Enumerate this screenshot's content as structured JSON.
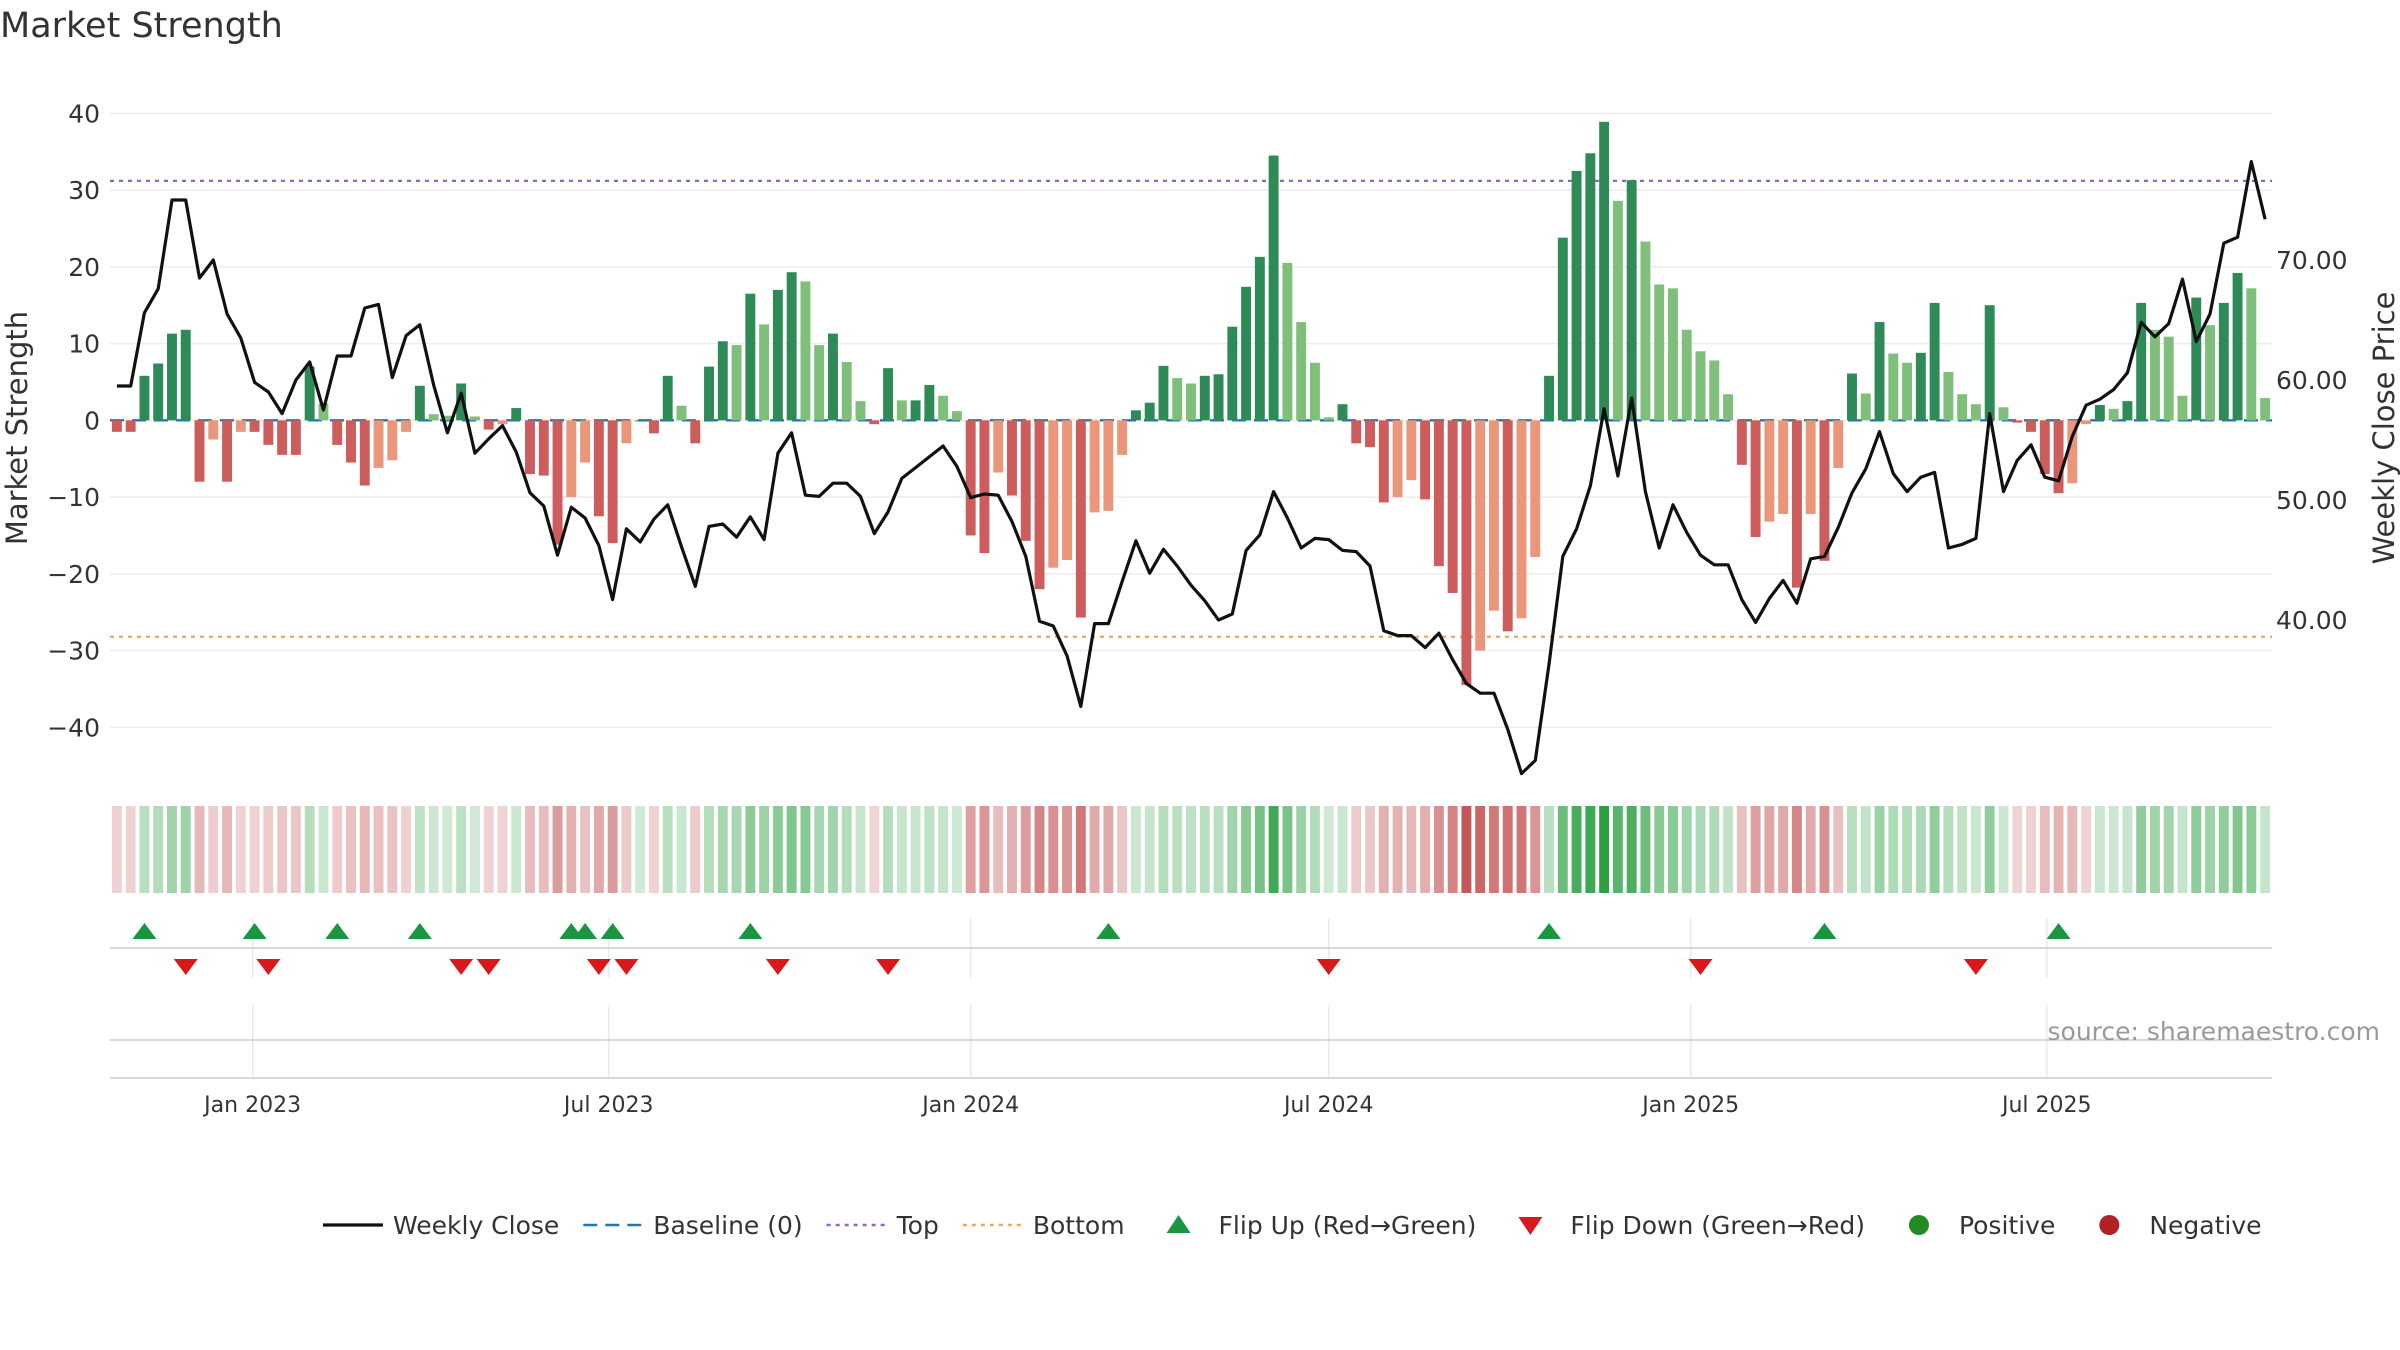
{
  "chart_data": {
    "type": "bar",
    "title": "Market Strength",
    "ylabel_left": "Market Strength",
    "ylabel_right": "Weekly Close Price",
    "source": "source: sharemaestro.com",
    "y_left_range": [
      -44,
      42
    ],
    "y_left_ticks": [
      "40",
      "30",
      "20",
      "10",
      "0",
      "−10",
      "−20",
      "−30",
      "−40"
    ],
    "y_right_range": [
      28.5,
      83.5
    ],
    "y_right_ticks": [
      "70.00",
      "60.00",
      "50.00",
      "40.00"
    ],
    "top_level": 31.2,
    "bottom_level": -28.2,
    "x_ticks": [
      "Jan 2023",
      "Jul 2023",
      "Jan 2024",
      "Jul 2024",
      "Jan 2025",
      "Jul 2025"
    ],
    "start_date": "2022-10-24",
    "week_days": 7,
    "strength": [
      -1.5,
      -1.5,
      5.8,
      7.4,
      11.3,
      11.8,
      -8,
      -2.5,
      -8,
      -1.5,
      -1.5,
      -3.2,
      -4.5,
      -4.5,
      7,
      2.2,
      -3.2,
      -5.5,
      -8.5,
      -6.2,
      -5.2,
      -1.5,
      4.5,
      0.8,
      0.6,
      4.8,
      0.5,
      -1.2,
      -0.5,
      1.6,
      -7,
      -7.2,
      -16.2,
      -10,
      -5.5,
      -12.5,
      -16,
      -3,
      0,
      -1.7,
      5.8,
      1.9,
      -3,
      7,
      10.3,
      9.8,
      16.5,
      12.5,
      17,
      19.3,
      18.1,
      9.8,
      11.3,
      7.6,
      2.5,
      -0.5,
      6.8,
      2.6,
      2.6,
      4.6,
      3.2,
      1.2,
      -15,
      -17.3,
      -6.8,
      -9.8,
      -15.7,
      -22,
      -19.2,
      -18.2,
      -25.7,
      -12,
      -11.8,
      -4.5,
      1.3,
      2.3,
      7.1,
      5.5,
      4.8,
      5.8,
      6,
      12.2,
      17.4,
      21.3,
      34.5,
      20.5,
      12.8,
      7.5,
      0.4,
      2.1,
      -3,
      -3.5,
      -10.7,
      -10,
      -7.8,
      -10.3,
      -19,
      -22.5,
      -34.5,
      -30,
      -24.8,
      -27.5,
      -25.8,
      -17.8,
      5.8,
      23.8,
      32.5,
      34.8,
      38.9,
      28.6,
      31.3,
      23.3,
      17.7,
      17.2,
      11.8,
      9,
      7.8,
      3.4,
      -5.8,
      -15.2,
      -13.2,
      -12.2,
      -21.8,
      -12.2,
      -18.3,
      -6.2,
      6.1,
      3.5,
      12.8,
      8.7,
      7.5,
      8.8,
      15.3,
      6.3,
      3.4,
      2.1,
      15,
      1.7,
      -0.3,
      -1.5,
      -7,
      -9.5,
      -8.2,
      -0.5,
      2,
      1.5,
      2.5,
      15.3,
      11.8,
      10.9,
      3.2,
      16,
      12.4,
      15.3,
      19.2,
      17.2,
      2.9
    ],
    "weekly_close": [
      59.5,
      59.5,
      65.6,
      67.6,
      75,
      75,
      68.5,
      70,
      65.5,
      63.5,
      59.8,
      59,
      57.2,
      60,
      61.5,
      57.5,
      62,
      62,
      66,
      66.3,
      60.2,
      63.7,
      64.6,
      59.6,
      55.6,
      58.9,
      53.9,
      55.1,
      56.2,
      54,
      50.6,
      49.5,
      45.4,
      49.4,
      48.5,
      46.2,
      41.7,
      47.6,
      46.5,
      48.4,
      49.6,
      46.1,
      42.8,
      47.8,
      48,
      46.9,
      48.6,
      46.7,
      53.9,
      55.6,
      50.4,
      50.3,
      51.4,
      51.4,
      50.3,
      47.2,
      49,
      51.8,
      52.7,
      53.6,
      54.5,
      52.8,
      50.2,
      50.5,
      50.4,
      48.2,
      45.3,
      39.9,
      39.5,
      37,
      32.8,
      39.7,
      39.7,
      43.2,
      46.6,
      43.9,
      45.9,
      44.5,
      42.9,
      41.6,
      40,
      40.5,
      45.8,
      47.1,
      50.7,
      48.5,
      46,
      46.8,
      46.7,
      45.8,
      45.7,
      44.5,
      39.1,
      38.7,
      38.7,
      37.7,
      38.9,
      36.7,
      34.7,
      33.9,
      33.9,
      30.9,
      27.2,
      28.3,
      36.3,
      45.3,
      47.6,
      51.2,
      57.6,
      52,
      58.5,
      50.7,
      46,
      49.6,
      47.3,
      45.4,
      44.6,
      44.6,
      41.7,
      39.8,
      41.8,
      43.3,
      41.4,
      45.1,
      45.3,
      47.7,
      50.6,
      52.6,
      55.7,
      52.2,
      50.7,
      51.9,
      52.3,
      46,
      46.3,
      46.8,
      57.2,
      50.7,
      53.3,
      54.6,
      51.9,
      51.6,
      55.3,
      57.9,
      58.4,
      59.2,
      60.6,
      64.8,
      63.6,
      64.7,
      68.4,
      63.2,
      65.5,
      71.4,
      71.9,
      78.2,
      73.4
    ],
    "flip_up_dates": [
      "2022-11-07",
      "2023-01-02",
      "2023-02-13",
      "2023-03-27",
      "2023-06-12",
      "2023-06-19",
      "2023-07-03",
      "2023-09-11",
      "2024-03-11",
      "2024-10-21",
      "2025-03-10",
      "2025-07-07"
    ],
    "flip_down_dates": [
      "2022-11-28",
      "2023-01-09",
      "2023-04-17",
      "2023-05-01",
      "2023-06-26",
      "2023-07-10",
      "2023-09-25",
      "2023-11-20",
      "2024-07-01",
      "2025-01-06",
      "2025-05-26"
    ],
    "colors": {
      "strong_green": "#2e8b57",
      "weak_green": "#7fbf7b",
      "strong_red": "#cd5c5c",
      "weak_red": "#e9967a",
      "close_line": "#111111",
      "baseline": "#1f77b4",
      "top": "#9467bd",
      "bottom": "#f4a460",
      "flip_up": "#1a9641",
      "flip_down": "#d7191c",
      "positive": "#228b22",
      "negative": "#b22222"
    },
    "legend": [
      {
        "label": "Weekly Close",
        "kind": "line",
        "key": "close_line"
      },
      {
        "label": "Baseline (0)",
        "kind": "dash",
        "key": "baseline"
      },
      {
        "label": "Top",
        "kind": "dot",
        "key": "top"
      },
      {
        "label": "Bottom",
        "kind": "dot",
        "key": "bottom"
      },
      {
        "label": "Flip Up (Red→Green)",
        "kind": "tri-up",
        "key": "flip_up"
      },
      {
        "label": "Flip Down (Green→Red)",
        "kind": "tri-down",
        "key": "flip_down"
      },
      {
        "label": "Positive",
        "kind": "circle",
        "key": "positive"
      },
      {
        "label": "Negative",
        "kind": "circle",
        "key": "negative"
      }
    ]
  }
}
